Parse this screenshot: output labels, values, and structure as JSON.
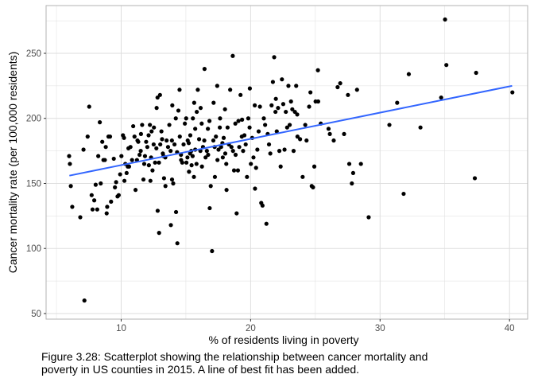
{
  "chart_data": {
    "type": "scatter",
    "xlabel": "% of residents living in poverty",
    "ylabel": "Cancer mortality rate (per 100,000 residents)",
    "xlim": [
      4.2,
      41.4
    ],
    "ylim": [
      45.7,
      286.7
    ],
    "x_ticks": [
      10,
      20,
      30,
      40
    ],
    "y_ticks": [
      50,
      100,
      150,
      200,
      250
    ],
    "grid": true,
    "theme": "light",
    "colors": {
      "points": "#000000",
      "fit_line": "#3366ff",
      "grid": "#dedede",
      "panel_border": "#b3b3b3"
    },
    "fit_line": {
      "x": [
        6.0,
        40.2
      ],
      "y": [
        156,
        225
      ]
    },
    "points": [
      [
        5.98,
        171
      ],
      [
        6.04,
        165
      ],
      [
        6.11,
        148
      ],
      [
        6.22,
        132
      ],
      [
        6.84,
        124
      ],
      [
        7.16,
        60
      ],
      [
        7.09,
        176
      ],
      [
        7.41,
        186
      ],
      [
        7.53,
        209
      ],
      [
        7.72,
        141
      ],
      [
        7.79,
        130
      ],
      [
        7.92,
        137
      ],
      [
        8.03,
        149
      ],
      [
        8.15,
        130
      ],
      [
        8.23,
        171
      ],
      [
        8.35,
        197
      ],
      [
        8.42,
        150
      ],
      [
        8.54,
        182
      ],
      [
        8.63,
        168
      ],
      [
        8.74,
        168
      ],
      [
        8.81,
        178
      ],
      [
        8.88,
        127
      ],
      [
        8.92,
        132
      ],
      [
        9.02,
        186
      ],
      [
        9.14,
        186
      ],
      [
        9.22,
        136
      ],
      [
        9.43,
        169
      ],
      [
        9.52,
        147
      ],
      [
        9.61,
        151
      ],
      [
        9.72,
        140
      ],
      [
        9.81,
        141
      ],
      [
        9.92,
        157
      ],
      [
        10.02,
        171
      ],
      [
        10.14,
        187
      ],
      [
        10.22,
        185
      ],
      [
        10.32,
        165
      ],
      [
        10.42,
        158
      ],
      [
        10.51,
        163
      ],
      [
        10.56,
        177
      ],
      [
        10.61,
        163
      ],
      [
        10.72,
        178
      ],
      [
        10.84,
        168
      ],
      [
        10.93,
        194
      ],
      [
        11.03,
        186
      ],
      [
        11.11,
        145
      ],
      [
        11.22,
        168
      ],
      [
        11.26,
        183
      ],
      [
        11.32,
        182
      ],
      [
        11.42,
        172
      ],
      [
        11.51,
        175
      ],
      [
        11.62,
        195
      ],
      [
        11.72,
        153
      ],
      [
        11.78,
        165
      ],
      [
        11.84,
        171
      ],
      [
        11.93,
        182
      ],
      [
        12.02,
        178
      ],
      [
        12.12,
        187
      ],
      [
        12.14,
        164
      ],
      [
        12.22,
        195
      ],
      [
        12.26,
        152
      ],
      [
        12.31,
        170
      ],
      [
        12.42,
        160
      ],
      [
        12.51,
        180
      ],
      [
        12.53,
        193
      ],
      [
        12.62,
        166
      ],
      [
        12.72,
        177
      ],
      [
        12.74,
        208
      ],
      [
        12.81,
        216
      ],
      [
        12.82,
        129
      ],
      [
        12.92,
        166
      ],
      [
        12.93,
        112
      ],
      [
        13.02,
        180
      ],
      [
        13.11,
        190
      ],
      [
        13.16,
        184
      ],
      [
        13.22,
        173
      ],
      [
        13.27,
        171
      ],
      [
        13.31,
        154
      ],
      [
        13.41,
        170
      ],
      [
        13.42,
        148
      ],
      [
        13.51,
        183
      ],
      [
        13.62,
        178
      ],
      [
        13.72,
        195
      ],
      [
        13.82,
        175
      ],
      [
        13.84,
        118
      ],
      [
        13.92,
        183
      ],
      [
        13.93,
        153
      ],
      [
        14.02,
        150
      ],
      [
        14.12,
        180
      ],
      [
        14.22,
        200
      ],
      [
        14.24,
        128
      ],
      [
        14.32,
        174
      ],
      [
        14.34,
        104
      ],
      [
        14.42,
        206
      ],
      [
        14.51,
        222
      ],
      [
        14.53,
        186
      ],
      [
        14.62,
        172
      ],
      [
        14.63,
        168
      ],
      [
        14.72,
        166
      ],
      [
        14.82,
        180
      ],
      [
        14.92,
        196
      ],
      [
        15.02,
        200
      ],
      [
        15.04,
        166
      ],
      [
        15.12,
        170
      ],
      [
        15.14,
        183
      ],
      [
        15.22,
        181
      ],
      [
        15.24,
        159
      ],
      [
        15.32,
        173
      ],
      [
        15.34,
        187
      ],
      [
        15.42,
        175
      ],
      [
        15.44,
        164
      ],
      [
        15.52,
        171
      ],
      [
        15.54,
        200
      ],
      [
        15.62,
        155
      ],
      [
        15.64,
        212
      ],
      [
        15.72,
        176
      ],
      [
        15.82,
        165
      ],
      [
        15.84,
        205
      ],
      [
        15.92,
        222
      ],
      [
        16.02,
        184
      ],
      [
        16.12,
        175
      ],
      [
        16.14,
        208
      ],
      [
        16.22,
        196
      ],
      [
        16.24,
        163
      ],
      [
        16.32,
        178
      ],
      [
        16.42,
        183
      ],
      [
        16.44,
        238
      ],
      [
        16.52,
        170
      ],
      [
        16.62,
        175
      ],
      [
        16.72,
        172
      ],
      [
        16.82,
        198
      ],
      [
        16.84,
        131
      ],
      [
        16.92,
        148
      ],
      [
        17.02,
        98
      ],
      [
        17.12,
        183
      ],
      [
        17.14,
        212
      ],
      [
        17.22,
        178
      ],
      [
        17.24,
        155
      ],
      [
        17.32,
        186
      ],
      [
        17.42,
        225
      ],
      [
        17.44,
        168
      ],
      [
        17.52,
        176
      ],
      [
        17.62,
        193
      ],
      [
        17.64,
        200
      ],
      [
        17.72,
        178
      ],
      [
        17.82,
        181
      ],
      [
        17.92,
        185
      ],
      [
        18.02,
        207
      ],
      [
        18.04,
        173
      ],
      [
        18.12,
        165
      ],
      [
        18.14,
        145
      ],
      [
        18.22,
        193
      ],
      [
        18.32,
        180
      ],
      [
        18.42,
        222
      ],
      [
        18.52,
        178
      ],
      [
        18.62,
        248
      ],
      [
        18.64,
        175
      ],
      [
        18.72,
        160
      ],
      [
        18.82,
        196
      ],
      [
        18.84,
        172
      ],
      [
        18.92,
        127
      ],
      [
        19.02,
        160
      ],
      [
        19.12,
        178
      ],
      [
        19.22,
        218
      ],
      [
        19.32,
        186
      ],
      [
        19.34,
        199
      ],
      [
        19.42,
        175
      ],
      [
        19.52,
        187
      ],
      [
        19.62,
        180
      ],
      [
        19.72,
        155
      ],
      [
        19.82,
        200
      ],
      [
        19.92,
        193
      ],
      [
        19.94,
        223
      ],
      [
        20.02,
        165
      ],
      [
        20.12,
        185
      ],
      [
        20.22,
        170
      ],
      [
        20.32,
        210
      ],
      [
        20.34,
        146
      ],
      [
        20.42,
        162
      ],
      [
        20.52,
        176
      ],
      [
        20.62,
        190
      ],
      [
        20.72,
        209
      ],
      [
        20.82,
        135
      ],
      [
        20.92,
        133
      ],
      [
        21.02,
        200
      ],
      [
        21.12,
        195
      ],
      [
        21.22,
        119
      ],
      [
        21.32,
        188
      ],
      [
        21.42,
        180
      ],
      [
        21.52,
        173
      ],
      [
        21.62,
        210
      ],
      [
        21.72,
        228
      ],
      [
        21.82,
        247
      ],
      [
        21.92,
        205
      ],
      [
        22.02,
        190
      ],
      [
        22.12,
        208
      ],
      [
        22.22,
        175
      ],
      [
        22.32,
        163
      ],
      [
        22.42,
        230
      ],
      [
        22.52,
        211
      ],
      [
        22.62,
        176
      ],
      [
        22.72,
        205
      ],
      [
        22.82,
        193
      ],
      [
        22.92,
        225
      ],
      [
        23.02,
        195
      ],
      [
        23.12,
        213
      ],
      [
        23.22,
        207
      ],
      [
        23.32,
        175
      ],
      [
        23.42,
        205
      ],
      [
        23.52,
        225
      ],
      [
        23.62,
        186
      ],
      [
        23.82,
        184
      ],
      [
        24.02,
        155
      ],
      [
        24.22,
        195
      ],
      [
        24.32,
        183
      ],
      [
        24.52,
        209
      ],
      [
        24.62,
        220
      ],
      [
        24.72,
        148
      ],
      [
        24.82,
        147
      ],
      [
        24.92,
        163
      ],
      [
        25.02,
        213
      ],
      [
        25.22,
        213
      ],
      [
        25.42,
        196
      ],
      [
        26.02,
        192
      ],
      [
        26.12,
        188
      ],
      [
        26.42,
        183
      ],
      [
        26.72,
        224
      ],
      [
        26.92,
        227
      ],
      [
        27.22,
        188
      ],
      [
        27.52,
        218
      ],
      [
        27.62,
        165
      ],
      [
        27.82,
        150
      ],
      [
        27.92,
        158
      ],
      [
        28.22,
        222
      ],
      [
        28.52,
        165
      ],
      [
        29.12,
        124
      ],
      [
        30.72,
        195
      ],
      [
        31.32,
        212
      ],
      [
        31.82,
        142
      ],
      [
        32.22,
        234
      ],
      [
        33.12,
        193
      ],
      [
        34.72,
        216
      ],
      [
        35.02,
        276
      ],
      [
        35.12,
        241
      ],
      [
        37.32,
        154
      ],
      [
        37.42,
        235
      ],
      [
        40.22,
        220
      ],
      [
        25.2,
        237
      ],
      [
        23.6,
        203
      ],
      [
        13.0,
        218
      ],
      [
        13.95,
        210
      ],
      [
        11.53,
        188
      ],
      [
        10.25,
        152
      ],
      [
        21.95,
        215
      ],
      [
        19.06,
        198
      ],
      [
        16.7,
        192
      ],
      [
        15.72,
        192
      ],
      [
        17.85,
        170
      ],
      [
        12.35,
        190
      ]
    ]
  },
  "figure_caption": {
    "line1": "Figure 3.28: Scatterplot showing the relationship between cancer mortality and",
    "line2": "poverty in US counties in 2015. A line of best fit has been added."
  }
}
